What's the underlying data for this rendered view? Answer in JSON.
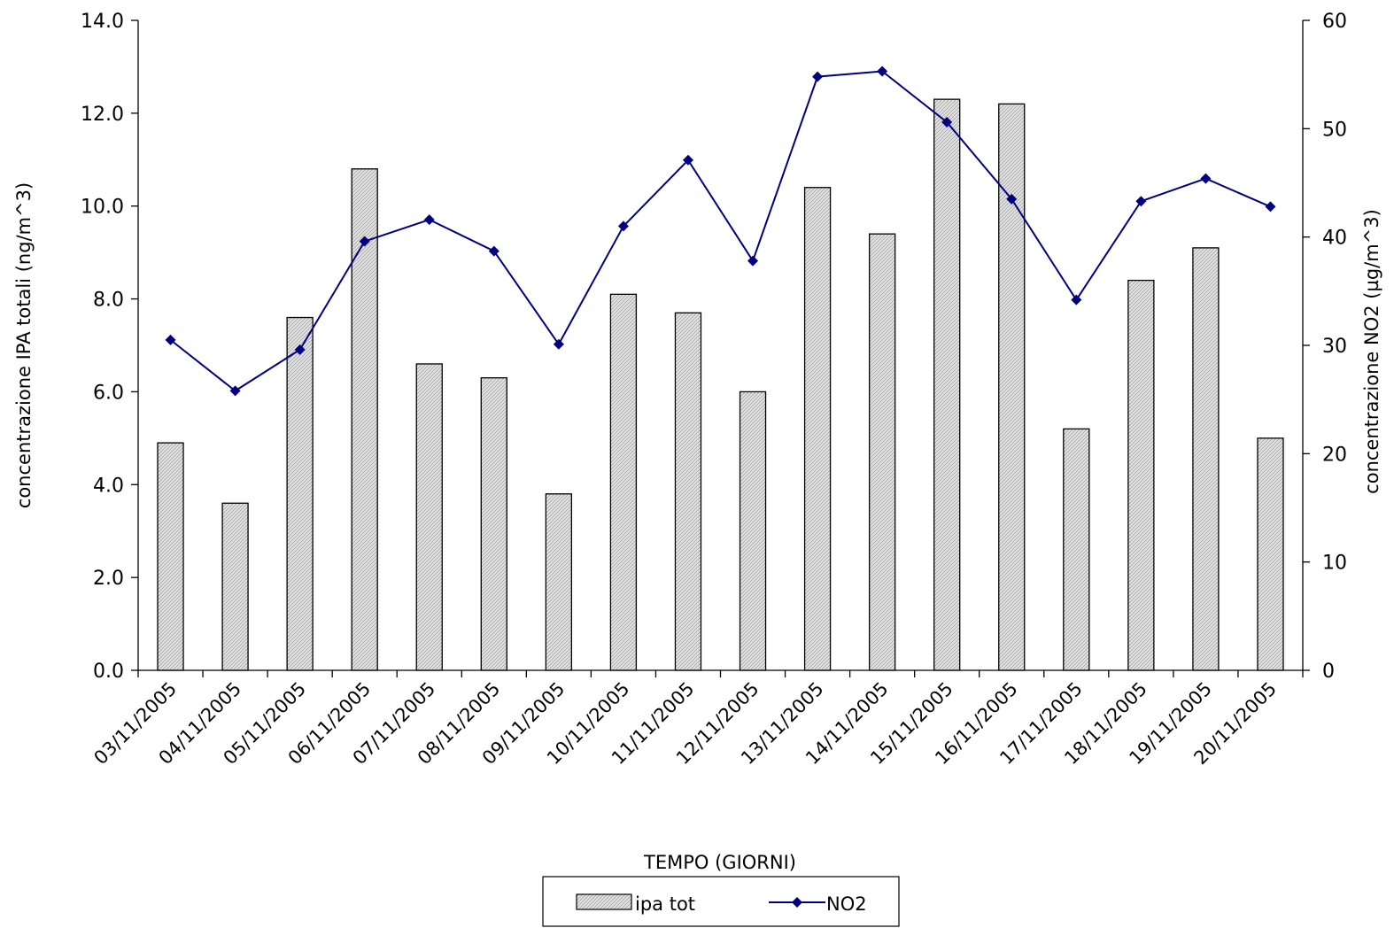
{
  "chart_data": {
    "type": "bar",
    "categories": [
      "03/11/2005",
      "04/11/2005",
      "05/11/2005",
      "06/11/2005",
      "07/11/2005",
      "08/11/2005",
      "09/11/2005",
      "10/11/2005",
      "11/11/2005",
      "12/11/2005",
      "13/11/2005",
      "14/11/2005",
      "15/11/2005",
      "16/11/2005",
      "17/11/2005",
      "18/11/2005",
      "19/11/2005",
      "20/11/2005"
    ],
    "series": [
      {
        "name": "ipa tot",
        "type": "bar",
        "axis": "left",
        "values": [
          4.9,
          3.6,
          7.6,
          10.8,
          6.6,
          6.3,
          3.8,
          8.1,
          7.7,
          6.0,
          10.4,
          9.4,
          12.3,
          12.2,
          5.2,
          8.4,
          9.1,
          5.0
        ]
      },
      {
        "name": "NO2",
        "type": "line",
        "axis": "right",
        "values": [
          30.5,
          25.8,
          29.6,
          39.6,
          41.6,
          38.7,
          30.1,
          41.0,
          47.1,
          37.8,
          54.8,
          55.3,
          50.6,
          43.5,
          34.2,
          43.3,
          45.4,
          42.8
        ]
      }
    ],
    "xlabel": "TEMPO (GIORNI)",
    "ylabel": "concentrazione IPA totali (ng/m^3)",
    "y2label": "concentrazione NO2 (µg/m^3)",
    "ylim": [
      0,
      14
    ],
    "y_ticks": [
      "0.0",
      "2.0",
      "4.0",
      "6.0",
      "8.0",
      "10.0",
      "12.0",
      "14.0"
    ],
    "y2lim": [
      0,
      60
    ],
    "y2_ticks": [
      "0",
      "10",
      "20",
      "30",
      "40",
      "50",
      "60"
    ],
    "legend_position": "bottom",
    "grid": false,
    "colors": {
      "bar_fill": "#e0e0e0",
      "bar_stroke": "#000000",
      "line": "#000080"
    }
  }
}
